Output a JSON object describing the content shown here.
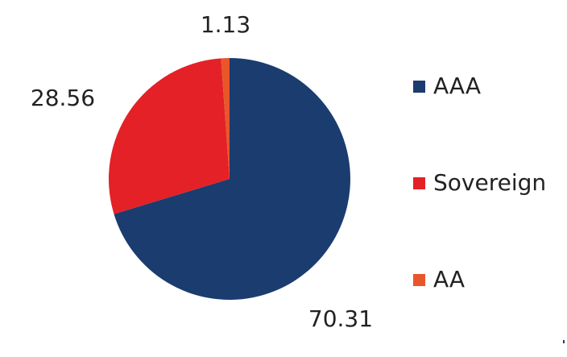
{
  "chart_data": {
    "type": "pie",
    "categories": [
      "AAA",
      "Sovereign",
      "AA"
    ],
    "values": [
      70.31,
      28.56,
      1.13
    ],
    "colors": [
      "#1b3c6f",
      "#e32127",
      "#e8562a"
    ],
    "legend": "right"
  }
}
